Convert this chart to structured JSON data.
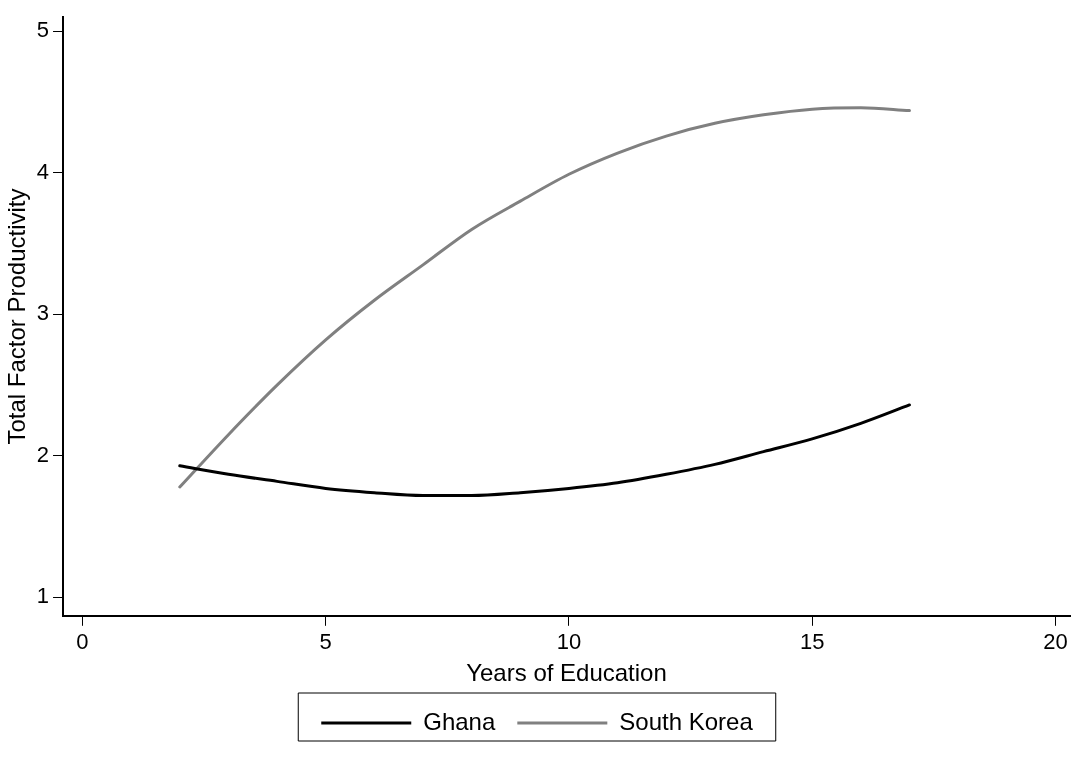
{
  "chart_data": {
    "type": "line",
    "xlabel": "Years of Education",
    "ylabel": "Total Factor Productivity",
    "x": [
      2,
      3,
      4,
      5,
      6,
      7,
      8,
      9,
      10,
      11,
      12,
      13,
      14,
      15,
      16,
      17
    ],
    "series": [
      {
        "name": "Ghana",
        "color": "#000000",
        "values": [
          1.93,
          1.87,
          1.82,
          1.77,
          1.74,
          1.72,
          1.72,
          1.74,
          1.77,
          1.81,
          1.87,
          1.94,
          2.03,
          2.12,
          2.23,
          2.36
        ]
      },
      {
        "name": "South Korea",
        "color": "#808080",
        "values": [
          1.78,
          2.15,
          2.5,
          2.82,
          3.1,
          3.35,
          3.6,
          3.8,
          3.99,
          4.14,
          4.26,
          4.35,
          4.41,
          4.45,
          4.46,
          4.44
        ]
      }
    ],
    "xlim": [
      -0.4,
      20.3
    ],
    "ylim": [
      0.87,
      5.1
    ],
    "xticks": [
      0,
      5,
      10,
      15,
      20
    ],
    "yticks": [
      1,
      2,
      3,
      4,
      5
    ],
    "grid": false,
    "legend": "bottom",
    "marker": "none",
    "line_style": "solid"
  }
}
